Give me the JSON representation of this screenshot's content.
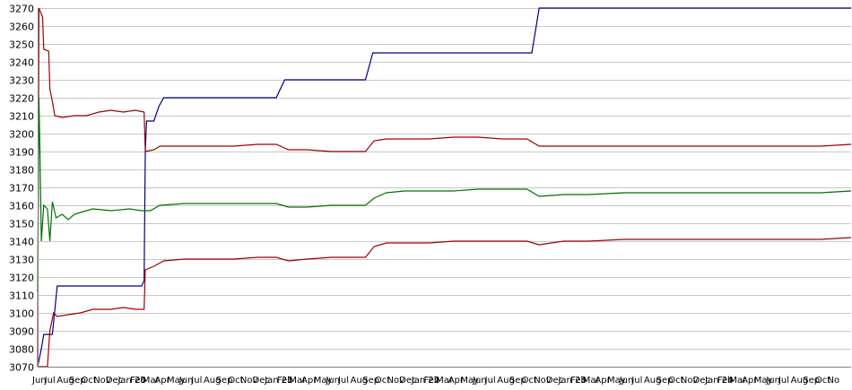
{
  "chart_data": {
    "type": "line",
    "title": "",
    "xlabel": "",
    "ylabel": "",
    "ylim": [
      3070,
      3270
    ],
    "y_ticks": [
      3070,
      3080,
      3090,
      3100,
      3110,
      3120,
      3130,
      3140,
      3150,
      3160,
      3170,
      3180,
      3190,
      3200,
      3210,
      3220,
      3230,
      3240,
      3250,
      3260,
      3270
    ],
    "x_tick_labels": [
      "Jun",
      "Jul",
      "Aug",
      "Sep",
      "Oct",
      "Nov",
      "Dec",
      "Jan 20",
      "Feb",
      "Mar",
      "Apr",
      "May",
      "Jun",
      "Jul",
      "Aug",
      "Sep",
      "Oct",
      "Nov",
      "Dec",
      "Jan 21",
      "Feb",
      "Mar",
      "Apr",
      "May",
      "Jun",
      "Jul",
      "Aug",
      "Sep",
      "Oct",
      "Nov",
      "Dec",
      "Jan 22",
      "Feb",
      "Mar",
      "Apr",
      "May",
      "Jun",
      "Jul",
      "Aug",
      "Sep",
      "Oct",
      "Nov",
      "Dec",
      "Jan 23",
      "Feb",
      "Mar",
      "Apr",
      "May",
      "Jun",
      "Jul",
      "Aug",
      "Sep",
      "Oct",
      "Nov",
      "Dec",
      "Jan 24",
      "Feb",
      "Mar",
      "Apr",
      "May",
      "Jun",
      "Jul",
      "Aug",
      "Sep",
      "Oct",
      "No"
    ],
    "grid": "horizontal",
    "legend": "none",
    "x_start_month": "2019-06",
    "series": [
      {
        "color": "#000080",
        "points": [
          [
            0,
            3070
          ],
          [
            0.3,
            3080
          ],
          [
            0.5,
            3088
          ],
          [
            1.2,
            3088
          ],
          [
            1.6,
            3115
          ],
          [
            8.5,
            3115
          ],
          [
            8.7,
            3118
          ],
          [
            8.8,
            3190
          ],
          [
            8.9,
            3207
          ],
          [
            9.5,
            3207
          ],
          [
            9.9,
            3215
          ],
          [
            10.3,
            3220
          ],
          [
            19.5,
            3220
          ],
          [
            20.2,
            3230
          ],
          [
            26.8,
            3230
          ],
          [
            27.4,
            3245
          ],
          [
            40.4,
            3245
          ],
          [
            41.0,
            3270
          ],
          [
            66.5,
            3270
          ]
        ]
      },
      {
        "color": "#a00000",
        "points": [
          [
            0,
            3070
          ],
          [
            0.1,
            3270
          ],
          [
            0.4,
            3265
          ],
          [
            0.5,
            3247
          ],
          [
            0.9,
            3246
          ],
          [
            1.0,
            3225
          ],
          [
            1.2,
            3218
          ],
          [
            1.4,
            3210
          ],
          [
            2,
            3209
          ],
          [
            3,
            3210
          ],
          [
            4,
            3210
          ],
          [
            5,
            3212
          ],
          [
            6,
            3213
          ],
          [
            7,
            3212
          ],
          [
            8,
            3213
          ],
          [
            8.7,
            3212
          ],
          [
            8.8,
            3190
          ],
          [
            9.5,
            3191
          ],
          [
            10,
            3193
          ],
          [
            12,
            3193
          ],
          [
            14,
            3193
          ],
          [
            16,
            3193
          ],
          [
            18,
            3194
          ],
          [
            19.5,
            3194
          ],
          [
            20.5,
            3191
          ],
          [
            22,
            3191
          ],
          [
            24,
            3190
          ],
          [
            25,
            3190
          ],
          [
            26.8,
            3190
          ],
          [
            27.5,
            3196
          ],
          [
            28.5,
            3197
          ],
          [
            30,
            3197
          ],
          [
            32,
            3197
          ],
          [
            34,
            3198
          ],
          [
            36,
            3198
          ],
          [
            38,
            3197
          ],
          [
            40,
            3197
          ],
          [
            41,
            3193
          ],
          [
            43,
            3193
          ],
          [
            45,
            3193
          ],
          [
            48,
            3193
          ],
          [
            50,
            3193
          ],
          [
            53,
            3193
          ],
          [
            56,
            3193
          ],
          [
            59,
            3193
          ],
          [
            62,
            3193
          ],
          [
            64,
            3193
          ],
          [
            66.5,
            3194
          ]
        ]
      },
      {
        "color": "#a00000",
        "points": [
          [
            0,
            3070
          ],
          [
            0.8,
            3070
          ],
          [
            1.0,
            3090
          ],
          [
            1.3,
            3100
          ],
          [
            1.6,
            3098
          ],
          [
            2.5,
            3099
          ],
          [
            3.5,
            3100
          ],
          [
            4.5,
            3102
          ],
          [
            6,
            3102
          ],
          [
            7,
            3103
          ],
          [
            8,
            3102
          ],
          [
            8.7,
            3102
          ],
          [
            8.8,
            3124
          ],
          [
            9.5,
            3126
          ],
          [
            10.3,
            3129
          ],
          [
            12,
            3130
          ],
          [
            14,
            3130
          ],
          [
            16,
            3130
          ],
          [
            18,
            3131
          ],
          [
            19.5,
            3131
          ],
          [
            20.5,
            3129
          ],
          [
            22,
            3130
          ],
          [
            24,
            3131
          ],
          [
            26.8,
            3131
          ],
          [
            27.5,
            3137
          ],
          [
            28.5,
            3139
          ],
          [
            30,
            3139
          ],
          [
            32,
            3139
          ],
          [
            34,
            3140
          ],
          [
            36,
            3140
          ],
          [
            38,
            3140
          ],
          [
            40,
            3140
          ],
          [
            41,
            3138
          ],
          [
            43,
            3140
          ],
          [
            45,
            3140
          ],
          [
            48,
            3141
          ],
          [
            50,
            3141
          ],
          [
            53,
            3141
          ],
          [
            56,
            3141
          ],
          [
            59,
            3141
          ],
          [
            62,
            3141
          ],
          [
            64,
            3141
          ],
          [
            66.5,
            3142
          ]
        ]
      },
      {
        "color": "#007000",
        "points": [
          [
            0,
            3112
          ],
          [
            0.1,
            3220
          ],
          [
            0.2,
            3186
          ],
          [
            0.3,
            3140
          ],
          [
            0.5,
            3160
          ],
          [
            0.8,
            3158
          ],
          [
            1.0,
            3140
          ],
          [
            1.2,
            3162
          ],
          [
            1.5,
            3153
          ],
          [
            2.0,
            3155
          ],
          [
            2.5,
            3152
          ],
          [
            3.0,
            3155
          ],
          [
            3.5,
            3156
          ],
          [
            4.5,
            3158
          ],
          [
            6,
            3157
          ],
          [
            7.5,
            3158
          ],
          [
            8.5,
            3157
          ],
          [
            8.8,
            3157
          ],
          [
            9.2,
            3157
          ],
          [
            10,
            3160
          ],
          [
            12,
            3161
          ],
          [
            14,
            3161
          ],
          [
            16,
            3161
          ],
          [
            18,
            3161
          ],
          [
            19.5,
            3161
          ],
          [
            20.5,
            3159
          ],
          [
            22,
            3159
          ],
          [
            24,
            3160
          ],
          [
            26.8,
            3160
          ],
          [
            27.5,
            3164
          ],
          [
            28.5,
            3167
          ],
          [
            30,
            3168
          ],
          [
            32,
            3168
          ],
          [
            34,
            3168
          ],
          [
            36,
            3169
          ],
          [
            38,
            3169
          ],
          [
            40,
            3169
          ],
          [
            41,
            3165
          ],
          [
            43,
            3166
          ],
          [
            45,
            3166
          ],
          [
            48,
            3167
          ],
          [
            50,
            3167
          ],
          [
            53,
            3167
          ],
          [
            56,
            3167
          ],
          [
            59,
            3167
          ],
          [
            62,
            3167
          ],
          [
            64,
            3167
          ],
          [
            66.5,
            3168
          ]
        ]
      }
    ]
  }
}
